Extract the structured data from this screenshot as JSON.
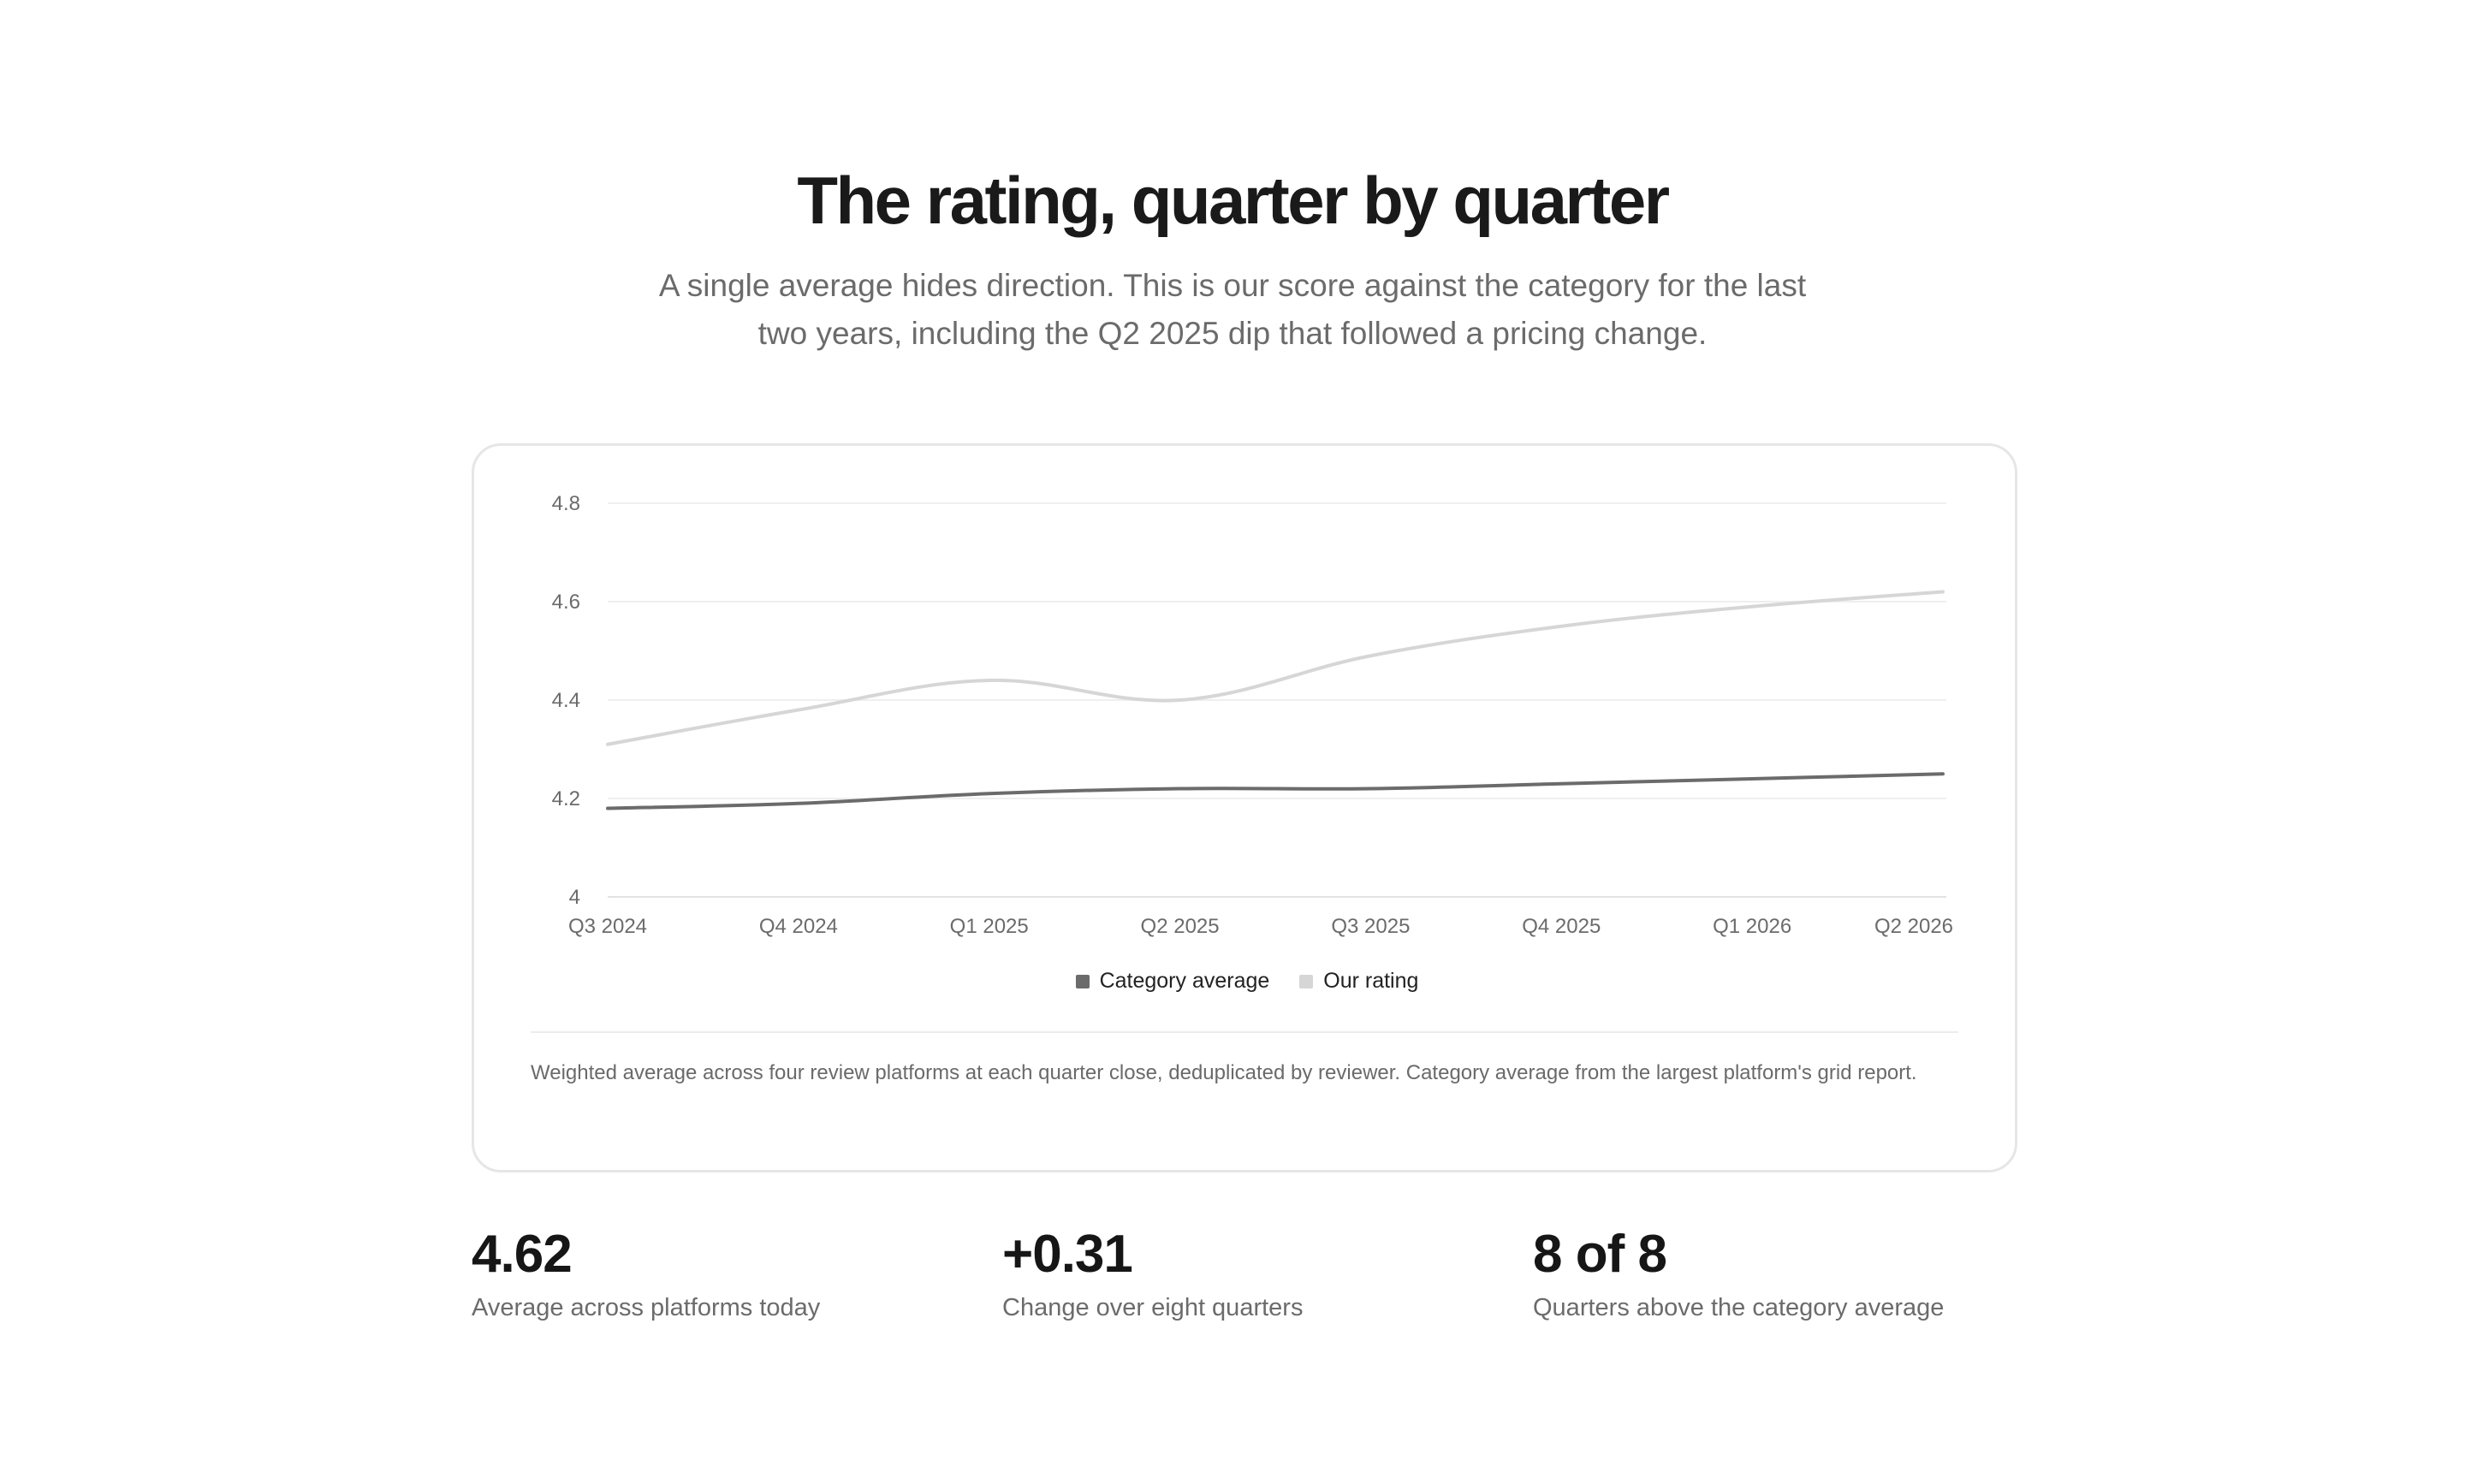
{
  "header": {
    "title": "The rating, quarter by quarter",
    "subtitle": "A single average hides direction. This is our score against the category for the last two years, including the Q2 2025 dip that followed a pricing change."
  },
  "chart_data": {
    "type": "line",
    "x": [
      "Q3 2024",
      "Q4 2024",
      "Q1 2025",
      "Q2 2025",
      "Q3 2025",
      "Q4 2025",
      "Q1 2026",
      "Q2 2026"
    ],
    "series": [
      {
        "name": "Category average",
        "color": "#6b6b6b",
        "values": [
          4.18,
          4.19,
          4.21,
          4.22,
          4.22,
          4.23,
          4.24,
          4.25
        ]
      },
      {
        "name": "Our rating",
        "color": "#d6d6d6",
        "values": [
          4.31,
          4.38,
          4.44,
          4.4,
          4.49,
          4.55,
          4.59,
          4.62
        ]
      }
    ],
    "ylim": [
      4,
      4.8
    ],
    "yticks": [
      "4",
      "4.2",
      "4.4",
      "4.6",
      "4.8"
    ],
    "grid": true,
    "legend_position": "bottom",
    "xlabel": "",
    "ylabel": ""
  },
  "footnote": "Weighted average across four review platforms at each quarter close, deduplicated by reviewer. Category average from the largest platform's grid report.",
  "stats": [
    {
      "value": "4.62",
      "label": "Average across platforms today"
    },
    {
      "value": "+0.31",
      "label": "Change over eight quarters"
    },
    {
      "value": "8 of 8",
      "label": "Quarters above the category average"
    }
  ]
}
